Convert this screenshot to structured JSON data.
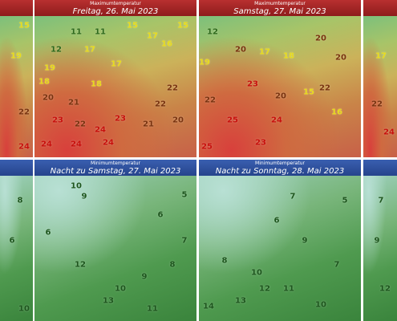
{
  "panels": [
    {
      "values": [
        15,
        19,
        22,
        24
      ]
    },
    {
      "title": "Maximumtemperatur",
      "subtitle": "Freitag, 26. Mai 2023",
      "values": [
        11,
        11,
        15,
        15,
        12,
        17,
        16,
        19,
        17,
        17,
        18,
        18,
        22,
        20,
        21,
        22,
        23,
        22,
        24,
        23,
        24,
        24,
        21,
        20,
        24
      ]
    },
    {
      "title": "Maximumtemperatur",
      "subtitle": "Samstag, 27. Mai 2023",
      "values": [
        12,
        19,
        20,
        17,
        18,
        20,
        20,
        23,
        20,
        22,
        25,
        24,
        22,
        15,
        16,
        23,
        25
      ]
    },
    {
      "values": [
        17,
        22,
        24
      ]
    },
    {
      "values": [
        8,
        6,
        10
      ]
    },
    {
      "title": "Minimumtemperatur",
      "subtitle": "Nacht zu Samstag, 27. Mai 2023",
      "values": [
        10,
        5,
        9,
        6,
        6,
        10,
        9,
        8,
        13,
        11,
        7,
        12
      ]
    },
    {
      "title": "Minimumtemperatur",
      "subtitle": "Nacht zu Sonntag, 28. Mai 2023",
      "values": [
        7,
        5,
        6,
        9,
        8,
        10,
        11,
        14,
        13,
        12,
        7,
        10
      ]
    },
    {
      "values": [
        7,
        9,
        12
      ]
    }
  ]
}
